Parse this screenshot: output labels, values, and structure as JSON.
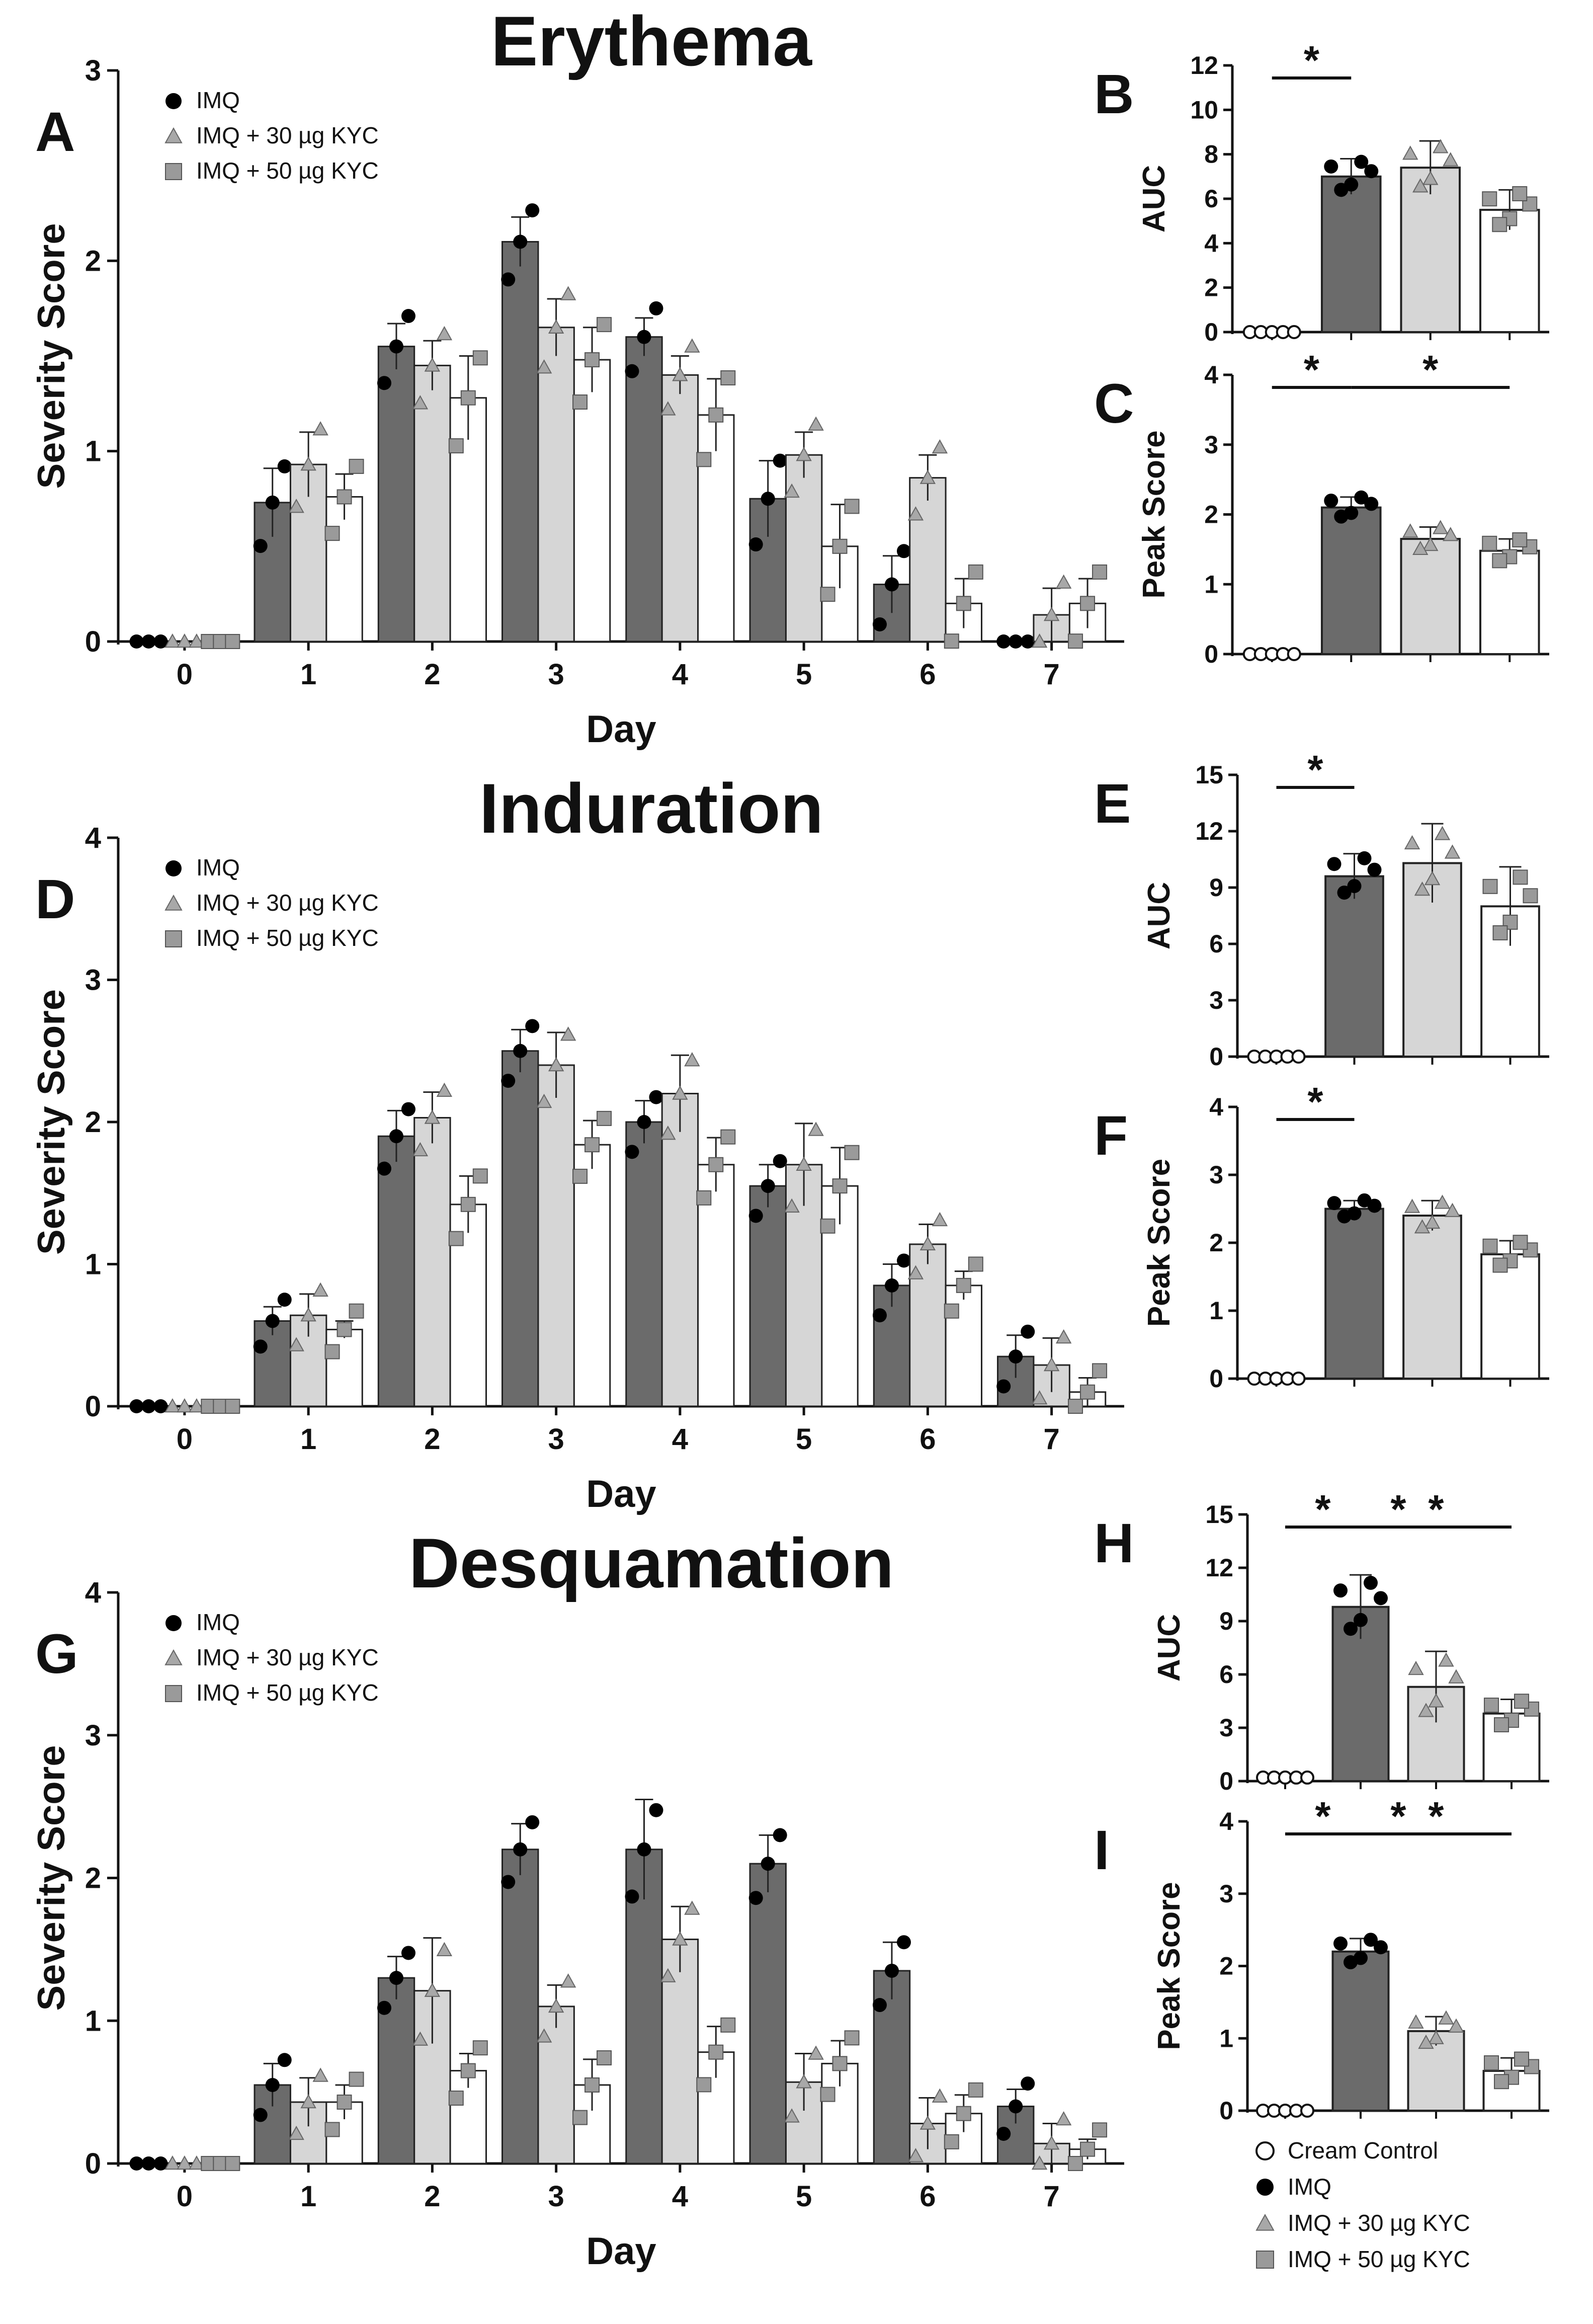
{
  "legend": {
    "items": [
      "Cream Control",
      "IMQ",
      "IMQ + 30 µg KYC",
      "IMQ + 50 µg KYC"
    ],
    "colors": {
      "cream": "#ffffff",
      "imq": "#6b6b6b",
      "kyc30": "#d6d6d6",
      "kyc50": "#ffffff",
      "marker_imq": "#000000",
      "marker_kyc30": "#a8a8a8",
      "marker_kyc50": "#9a9a9a"
    }
  },
  "chart_data": [
    {
      "id": "A",
      "letter": "A",
      "type": "bar",
      "title": "Erythema",
      "xlabel": "Day",
      "ylabel": "Severity Score",
      "categories": [
        "0",
        "1",
        "2",
        "3",
        "4",
        "5",
        "6",
        "7"
      ],
      "ylim": [
        0,
        3
      ],
      "yticks": [
        "0",
        "1",
        "2",
        "3"
      ],
      "legend": [
        "IMQ",
        "IMQ + 30 µg KYC",
        "IMQ + 50 µg KYC"
      ],
      "series": [
        {
          "name": "IMQ",
          "values": [
            0,
            0.73,
            1.55,
            2.1,
            1.6,
            0.75,
            0.3,
            0
          ],
          "errors": [
            0,
            0.18,
            0.12,
            0.13,
            0.1,
            0.2,
            0.15,
            0
          ]
        },
        {
          "name": "IMQ + 30 µg KYC",
          "values": [
            0,
            0.93,
            1.45,
            1.65,
            1.4,
            0.98,
            0.86,
            0.14
          ],
          "errors": [
            0,
            0.17,
            0.13,
            0.15,
            0.1,
            0.12,
            0.12,
            0.14
          ]
        },
        {
          "name": "IMQ + 50 µg KYC",
          "values": [
            0,
            0.76,
            1.28,
            1.48,
            1.19,
            0.5,
            0.2,
            0.2
          ],
          "errors": [
            0,
            0.12,
            0.22,
            0.17,
            0.19,
            0.22,
            0.13,
            0.13
          ]
        }
      ]
    },
    {
      "id": "B",
      "letter": "B",
      "type": "bar",
      "title": "",
      "xlabel": "",
      "ylabel": "AUC",
      "categories": [
        "Cream Control",
        "IMQ",
        "IMQ + 30 µg KYC",
        "IMQ + 50 µg KYC"
      ],
      "ylim": [
        0,
        12
      ],
      "yticks": [
        "0",
        "2",
        "4",
        "6",
        "8",
        "10",
        "12"
      ],
      "values": [
        0,
        7.0,
        7.4,
        5.5
      ],
      "errors": [
        0,
        0.8,
        1.2,
        0.9
      ],
      "annotations": [
        {
          "text": "*",
          "from": 0,
          "to": 1
        }
      ]
    },
    {
      "id": "C",
      "letter": "C",
      "type": "bar",
      "title": "",
      "xlabel": "",
      "ylabel": "Peak Score",
      "categories": [
        "Cream Control",
        "IMQ",
        "IMQ + 30 µg KYC",
        "IMQ + 50 µg KYC"
      ],
      "ylim": [
        0,
        4
      ],
      "yticks": [
        "0",
        "1",
        "2",
        "3",
        "4"
      ],
      "values": [
        0,
        2.1,
        1.65,
        1.48
      ],
      "errors": [
        0,
        0.15,
        0.17,
        0.17
      ],
      "annotations": [
        {
          "text": "*",
          "from": 0,
          "to": 1
        },
        {
          "text": "*",
          "from": 1,
          "to": 3
        }
      ]
    },
    {
      "id": "D",
      "letter": "D",
      "type": "bar",
      "title": "Induration",
      "xlabel": "Day",
      "ylabel": "Severity Score",
      "categories": [
        "0",
        "1",
        "2",
        "3",
        "4",
        "5",
        "6",
        "7"
      ],
      "ylim": [
        0,
        4
      ],
      "yticks": [
        "0",
        "1",
        "2",
        "3",
        "4"
      ],
      "legend": [
        "IMQ",
        "IMQ + 30 µg KYC",
        "IMQ + 50 µg KYC"
      ],
      "series": [
        {
          "name": "IMQ",
          "values": [
            0,
            0.6,
            1.9,
            2.5,
            2.0,
            1.55,
            0.85,
            0.35
          ],
          "errors": [
            0,
            0.1,
            0.18,
            0.15,
            0.15,
            0.15,
            0.15,
            0.15
          ]
        },
        {
          "name": "IMQ + 30 µg KYC",
          "values": [
            0,
            0.64,
            2.03,
            2.4,
            2.2,
            1.7,
            1.14,
            0.29
          ],
          "errors": [
            0,
            0.15,
            0.18,
            0.23,
            0.27,
            0.29,
            0.14,
            0.19
          ]
        },
        {
          "name": "IMQ + 50 µg KYC",
          "values": [
            0,
            0.54,
            1.42,
            1.84,
            1.7,
            1.55,
            0.85,
            0.1
          ],
          "errors": [
            0,
            0.06,
            0.2,
            0.17,
            0.19,
            0.27,
            0.1,
            0.1
          ]
        }
      ]
    },
    {
      "id": "E",
      "letter": "E",
      "type": "bar",
      "title": "",
      "xlabel": "",
      "ylabel": "AUC",
      "categories": [
        "Cream Control",
        "IMQ",
        "IMQ + 30 µg KYC",
        "IMQ + 50 µg KYC"
      ],
      "ylim": [
        0,
        15
      ],
      "yticks": [
        "0",
        "3",
        "6",
        "9",
        "12",
        "15"
      ],
      "values": [
        0,
        9.6,
        10.3,
        8.0
      ],
      "errors": [
        0,
        1.2,
        2.1,
        2.1
      ],
      "annotations": [
        {
          "text": "*",
          "from": 0,
          "to": 1
        }
      ]
    },
    {
      "id": "F",
      "letter": "F",
      "type": "bar",
      "title": "",
      "xlabel": "",
      "ylabel": "Peak Score",
      "categories": [
        "Cream Control",
        "IMQ",
        "IMQ + 30 µg KYC",
        "IMQ + 50 µg KYC"
      ],
      "ylim": [
        0,
        4
      ],
      "yticks": [
        "0",
        "1",
        "2",
        "3",
        "4"
      ],
      "values": [
        0,
        2.5,
        2.4,
        1.83
      ],
      "errors": [
        0,
        0.12,
        0.22,
        0.2
      ],
      "annotations": [
        {
          "text": "*",
          "from": 0,
          "to": 1
        }
      ]
    },
    {
      "id": "G",
      "letter": "G",
      "type": "bar",
      "title": "Desquamation",
      "xlabel": "Day",
      "ylabel": "Severity Score",
      "categories": [
        "0",
        "1",
        "2",
        "3",
        "4",
        "5",
        "6",
        "7"
      ],
      "ylim": [
        0,
        4
      ],
      "yticks": [
        "0",
        "1",
        "2",
        "3",
        "4"
      ],
      "legend": [
        "IMQ",
        "IMQ + 30 µg KYC",
        "IMQ + 50 µg KYC"
      ],
      "series": [
        {
          "name": "IMQ",
          "values": [
            0,
            0.55,
            1.3,
            2.2,
            2.2,
            2.1,
            1.35,
            0.4
          ],
          "errors": [
            0,
            0.15,
            0.15,
            0.18,
            0.35,
            0.2,
            0.2,
            0.12
          ]
        },
        {
          "name": "IMQ + 30 µg KYC",
          "values": [
            0,
            0.43,
            1.21,
            1.1,
            1.57,
            0.57,
            0.28,
            0.14
          ],
          "errors": [
            0,
            0.17,
            0.37,
            0.15,
            0.23,
            0.2,
            0.18,
            0.14
          ]
        },
        {
          "name": "IMQ + 50 µg KYC",
          "values": [
            0,
            0.43,
            0.65,
            0.55,
            0.78,
            0.7,
            0.35,
            0.1
          ],
          "errors": [
            0,
            0.12,
            0.12,
            0.18,
            0.18,
            0.16,
            0.13,
            0.07
          ]
        }
      ]
    },
    {
      "id": "H",
      "letter": "H",
      "type": "bar",
      "title": "",
      "xlabel": "",
      "ylabel": "AUC",
      "categories": [
        "Cream Control",
        "IMQ",
        "IMQ + 30 µg KYC",
        "IMQ + 50 µg KYC"
      ],
      "ylim": [
        0,
        15
      ],
      "yticks": [
        "0",
        "3",
        "6",
        "9",
        "12",
        "15"
      ],
      "values": [
        0.2,
        9.8,
        5.3,
        3.8
      ],
      "errors": [
        0.1,
        1.8,
        2.0,
        0.8
      ],
      "annotations": [
        {
          "text": "*",
          "from": 0,
          "to": 1
        },
        {
          "text": "*",
          "from": 1,
          "to": 2
        },
        {
          "text": "*",
          "from": 1,
          "to": 3
        }
      ]
    },
    {
      "id": "I",
      "letter": "I",
      "type": "bar",
      "title": "",
      "xlabel": "",
      "ylabel": "Peak Score",
      "categories": [
        "Cream Control",
        "IMQ",
        "IMQ + 30 µg KYC",
        "IMQ + 50 µg KYC"
      ],
      "ylim": [
        0,
        4
      ],
      "yticks": [
        "0",
        "1",
        "2",
        "3",
        "4"
      ],
      "values": [
        0,
        2.2,
        1.1,
        0.55
      ],
      "errors": [
        0,
        0.18,
        0.2,
        0.18
      ],
      "annotations": [
        {
          "text": "*",
          "from": 0,
          "to": 1
        },
        {
          "text": "*",
          "from": 1,
          "to": 2
        },
        {
          "text": "*",
          "from": 1,
          "to": 3
        }
      ]
    }
  ]
}
